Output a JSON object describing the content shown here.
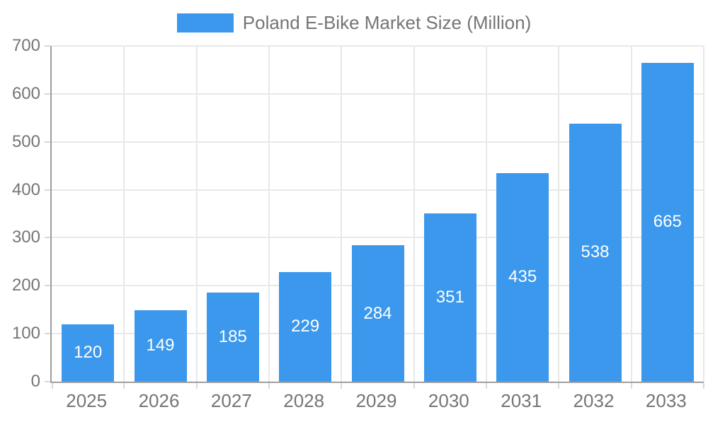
{
  "legend": {
    "label": "Poland E-Bike Market Size (Million)"
  },
  "colors": {
    "bar": "#3B98EC",
    "axis_line": "#9E9E9E",
    "grid_line": "#E8E8E8",
    "tick_mark": "#D9D9D9",
    "axis_label": "#757575",
    "value_label": "#FFFFFF",
    "background": "#FFFFFF"
  },
  "chart_data": {
    "type": "bar",
    "title": "Poland E-Bike Market Size (Million)",
    "series_name": "Poland E-Bike Market Size (Million)",
    "categories": [
      "2025",
      "2026",
      "2027",
      "2028",
      "2029",
      "2030",
      "2031",
      "2032",
      "2033"
    ],
    "values": [
      120,
      149,
      185,
      229,
      284,
      351,
      435,
      538,
      665
    ],
    "xlabel": "",
    "ylabel": "",
    "ylim": [
      0,
      700
    ],
    "yticks": [
      0,
      100,
      200,
      300,
      400,
      500,
      600,
      700
    ],
    "grid": true,
    "legend_position": "top-center",
    "value_label_position": "inside-center"
  }
}
